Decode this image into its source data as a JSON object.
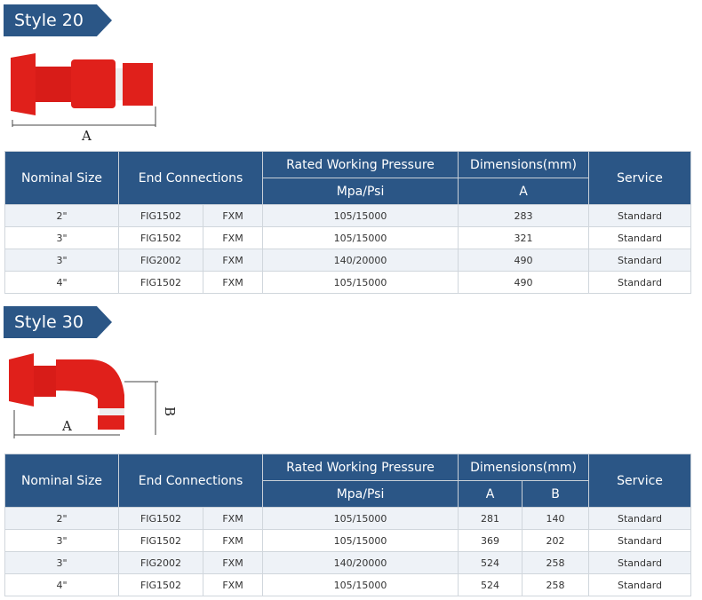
{
  "style20": {
    "title": "Style 20",
    "dim_label_a": "A",
    "headers": {
      "size": "Nominal Size",
      "end": "End Connections",
      "pressure_1": "Rated Working Pressure",
      "pressure_2": "Mpa/Psi",
      "dims": "Dimensions(mm)",
      "a": "A",
      "service": "Service"
    },
    "rows": [
      {
        "size": "2\"",
        "fig": "FIG1502",
        "conn": "FXM",
        "pressure": "105/15000",
        "a": "283",
        "service": "Standard"
      },
      {
        "size": "3\"",
        "fig": "FIG1502",
        "conn": "FXM",
        "pressure": "105/15000",
        "a": "321",
        "service": "Standard"
      },
      {
        "size": "3\"",
        "fig": "FIG2002",
        "conn": "FXM",
        "pressure": "140/20000",
        "a": "490",
        "service": "Standard"
      },
      {
        "size": "4\"",
        "fig": "FIG1502",
        "conn": "FXM",
        "pressure": "105/15000",
        "a": "490",
        "service": "Standard"
      }
    ]
  },
  "style30": {
    "title": "Style 30",
    "dim_label_a": "A",
    "dim_label_b": "B",
    "headers": {
      "size": "Nominal Size",
      "end": "End Connections",
      "pressure_1": "Rated Working Pressure",
      "pressure_2": "Mpa/Psi",
      "dims": "Dimensions(mm)",
      "a": "A",
      "b": "B",
      "service": "Service"
    },
    "rows": [
      {
        "size": "2\"",
        "fig": "FIG1502",
        "conn": "FXM",
        "pressure": "105/15000",
        "a": "281",
        "b": "140",
        "service": "Standard"
      },
      {
        "size": "3\"",
        "fig": "FIG1502",
        "conn": "FXM",
        "pressure": "105/15000",
        "a": "369",
        "b": "202",
        "service": "Standard"
      },
      {
        "size": "3\"",
        "fig": "FIG2002",
        "conn": "FXM",
        "pressure": "140/20000",
        "a": "524",
        "b": "258",
        "service": "Standard"
      },
      {
        "size": "4\"",
        "fig": "FIG1502",
        "conn": "FXM",
        "pressure": "105/15000",
        "a": "524",
        "b": "258",
        "service": "Standard"
      }
    ]
  },
  "colors": {
    "header": "#2b5686",
    "product": "#e0201b"
  }
}
